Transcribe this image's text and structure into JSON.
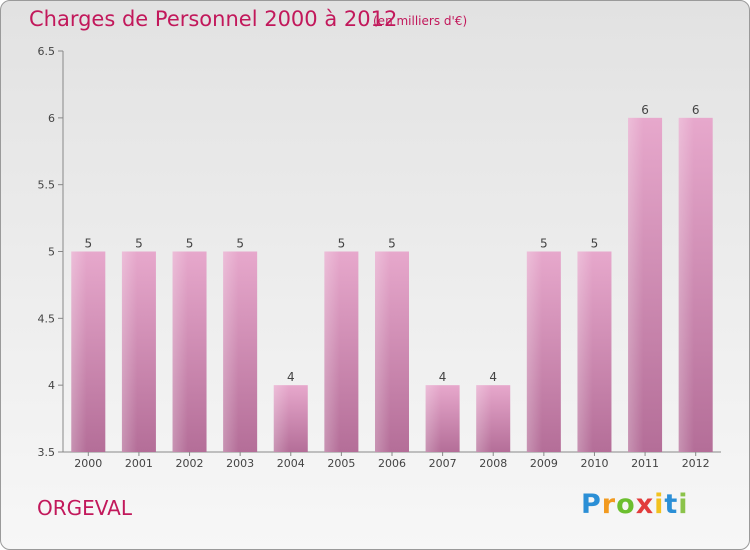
{
  "chart_data": {
    "type": "bar",
    "title": "Charges de Personnel 2000 à 2012",
    "subtitle": "(en milliers d'€)",
    "categories": [
      "2000",
      "2001",
      "2002",
      "2003",
      "2004",
      "2005",
      "2006",
      "2007",
      "2008",
      "2009",
      "2010",
      "2011",
      "2012"
    ],
    "values": [
      5,
      5,
      5,
      5,
      4,
      5,
      5,
      4,
      4,
      5,
      5,
      6,
      6
    ],
    "ylim": [
      3.5,
      6.5
    ],
    "yticks": [
      "3.5",
      "4",
      "4.5",
      "5",
      "5.5",
      "6",
      "6.5"
    ],
    "grid": false,
    "bar_color": "#d98cb5"
  },
  "commune": "ORGEVAL",
  "logo": {
    "letters": [
      "P",
      "r",
      "o",
      "x",
      "i",
      "t",
      "i"
    ],
    "colors": [
      "#2b8fd6",
      "#f29a1f",
      "#6cbf2f",
      "#e23c3c",
      "#f2c21f",
      "#2b8fd6",
      "#8bc34a"
    ]
  }
}
